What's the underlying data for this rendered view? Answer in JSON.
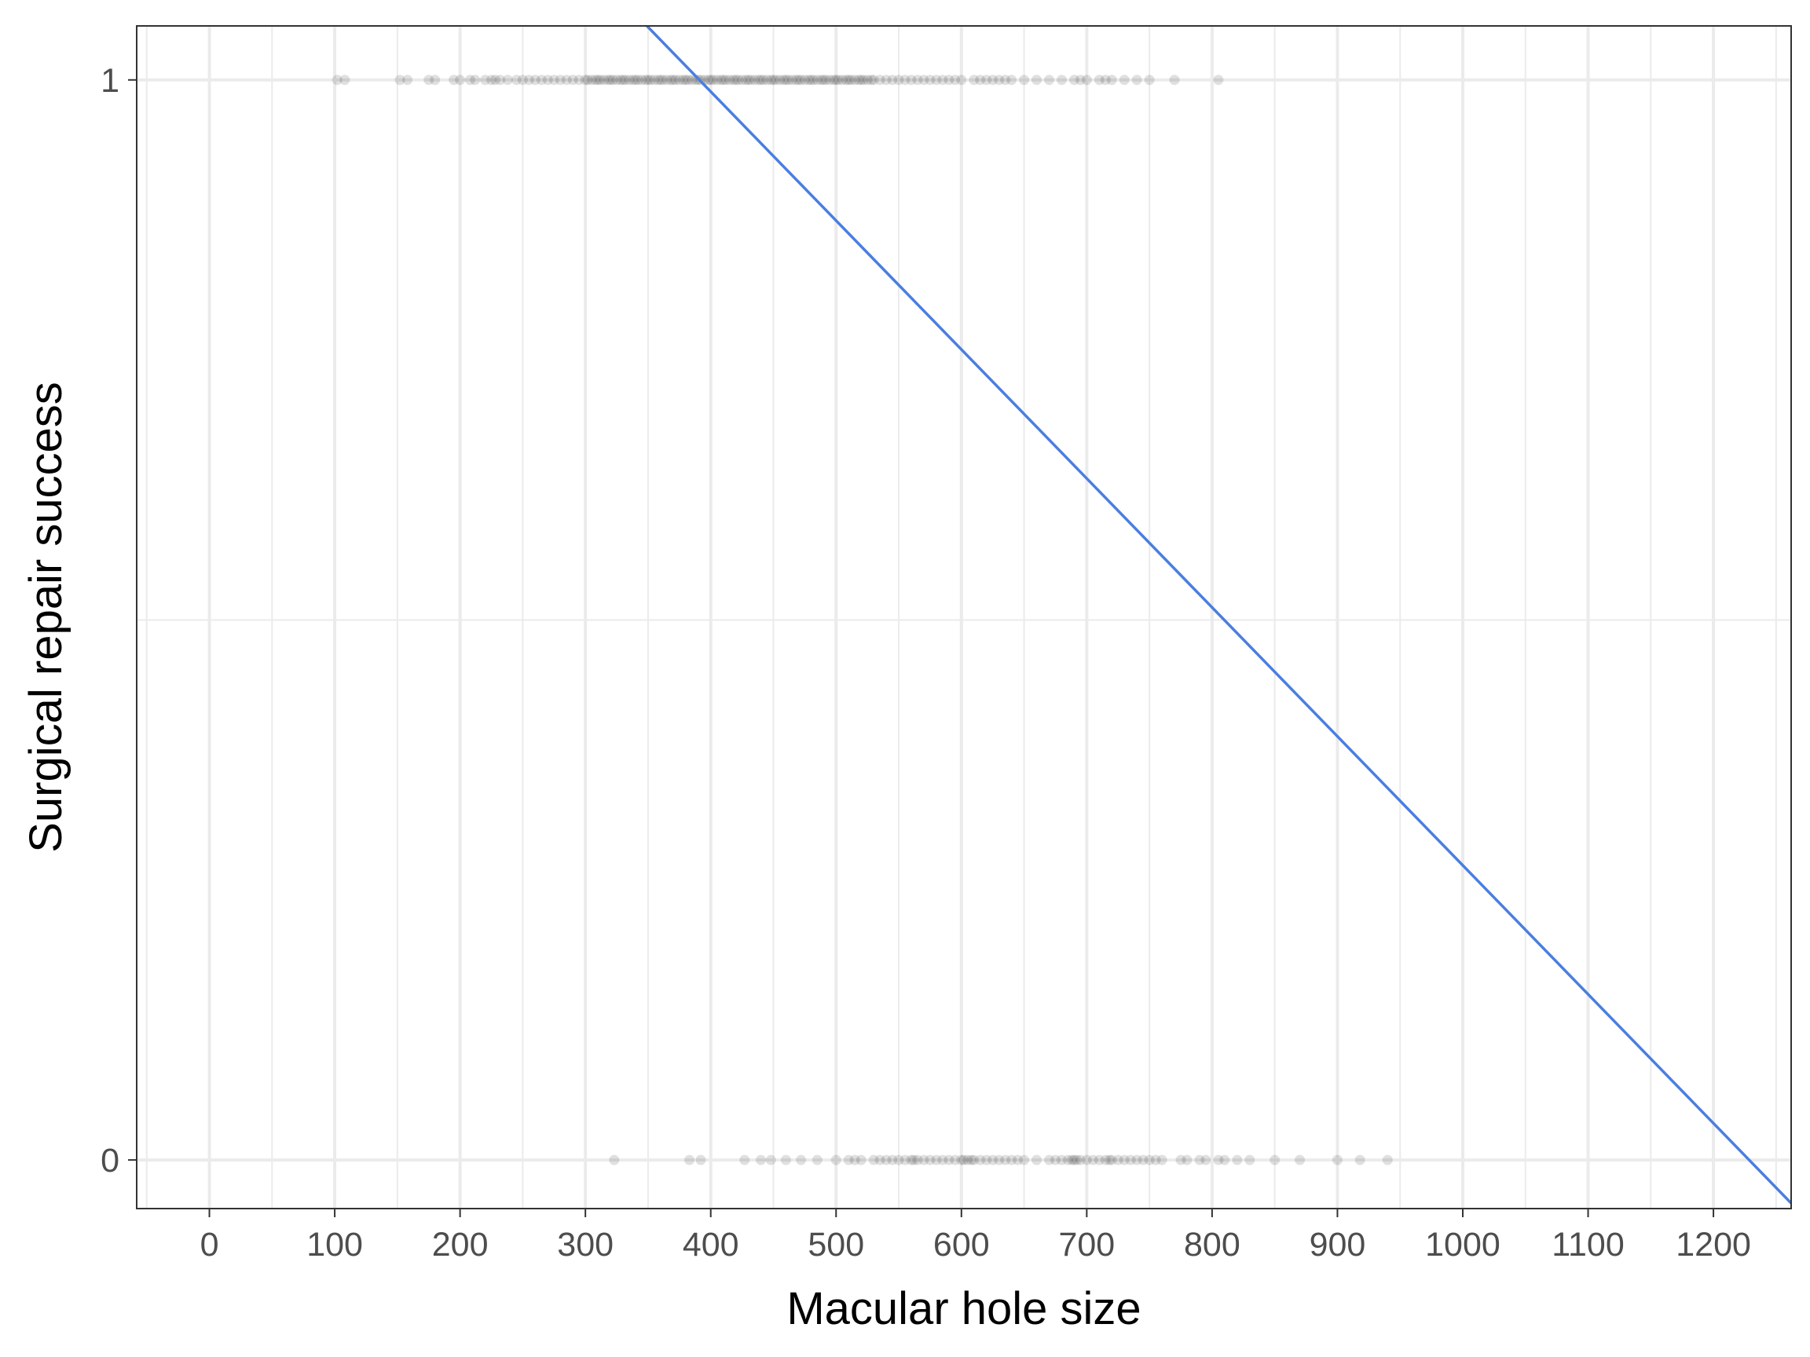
{
  "chart_data": {
    "type": "scatter",
    "title": "",
    "xlabel": "Macular hole size",
    "ylabel": "Surgical repair success",
    "xlim": [
      -58,
      1262
    ],
    "ylim": [
      -0.045,
      1.05
    ],
    "x_ticks": [
      0,
      100,
      200,
      300,
      400,
      500,
      600,
      700,
      800,
      900,
      1000,
      1100,
      1200
    ],
    "x_tick_labels": [
      "0",
      "100",
      "200",
      "300",
      "400",
      "500",
      "600",
      "700",
      "800",
      "900",
      "1000",
      "1100",
      "1200"
    ],
    "y_ticks": [
      0,
      1
    ],
    "y_tick_labels": [
      "0",
      "1"
    ],
    "y_minor_gridlines": [
      0.5
    ],
    "grid": true,
    "legend": "none",
    "colors": {
      "points": "#000000",
      "fit_line": "#4a7ee0",
      "grid": "#ebebeb",
      "border": "#333333"
    },
    "point_alpha": 0.12,
    "series": [
      {
        "kind": "points",
        "y": 1,
        "x": [
          102,
          108,
          152,
          158,
          175,
          180,
          195,
          200,
          208,
          212,
          220,
          225,
          228,
          232,
          238,
          245,
          250,
          255,
          260,
          265,
          270,
          275,
          280,
          285,
          290,
          295,
          300,
          302,
          305,
          308,
          310,
          312,
          315,
          318,
          320,
          322,
          325,
          328,
          330,
          332,
          335,
          338,
          340,
          342,
          345,
          348,
          350,
          352,
          355,
          358,
          360,
          362,
          365,
          368,
          370,
          372,
          375,
          378,
          380,
          382,
          385,
          388,
          390,
          392,
          395,
          398,
          400,
          402,
          405,
          408,
          410,
          412,
          415,
          418,
          420,
          422,
          425,
          428,
          430,
          432,
          435,
          438,
          440,
          442,
          445,
          448,
          450,
          452,
          455,
          458,
          460,
          462,
          465,
          468,
          470,
          472,
          475,
          478,
          480,
          482,
          485,
          488,
          490,
          492,
          495,
          498,
          500,
          502,
          505,
          508,
          510,
          512,
          515,
          518,
          520,
          522,
          525,
          528,
          530,
          535,
          540,
          545,
          550,
          555,
          560,
          565,
          570,
          575,
          580,
          585,
          590,
          595,
          600,
          610,
          615,
          620,
          625,
          630,
          635,
          640,
          650,
          660,
          670,
          680,
          690,
          695,
          700,
          710,
          715,
          720,
          730,
          740,
          750,
          770,
          805
        ]
      },
      {
        "kind": "points",
        "y": 0,
        "x": [
          323,
          383,
          392,
          427,
          440,
          448,
          460,
          472,
          485,
          500,
          510,
          515,
          520,
          530,
          535,
          540,
          545,
          550,
          555,
          560,
          562,
          565,
          570,
          575,
          580,
          585,
          590,
          595,
          600,
          602,
          605,
          608,
          610,
          615,
          620,
          625,
          630,
          635,
          640,
          645,
          650,
          660,
          670,
          675,
          680,
          685,
          688,
          690,
          692,
          695,
          700,
          705,
          710,
          715,
          718,
          720,
          725,
          730,
          735,
          740,
          745,
          750,
          755,
          760,
          775,
          780,
          790,
          795,
          805,
          810,
          820,
          830,
          850,
          870,
          900,
          918,
          940
        ]
      },
      {
        "kind": "line",
        "name": "",
        "x": [
          -58,
          1262
        ],
        "y": [
          1.536,
          -0.04
        ]
      }
    ]
  }
}
